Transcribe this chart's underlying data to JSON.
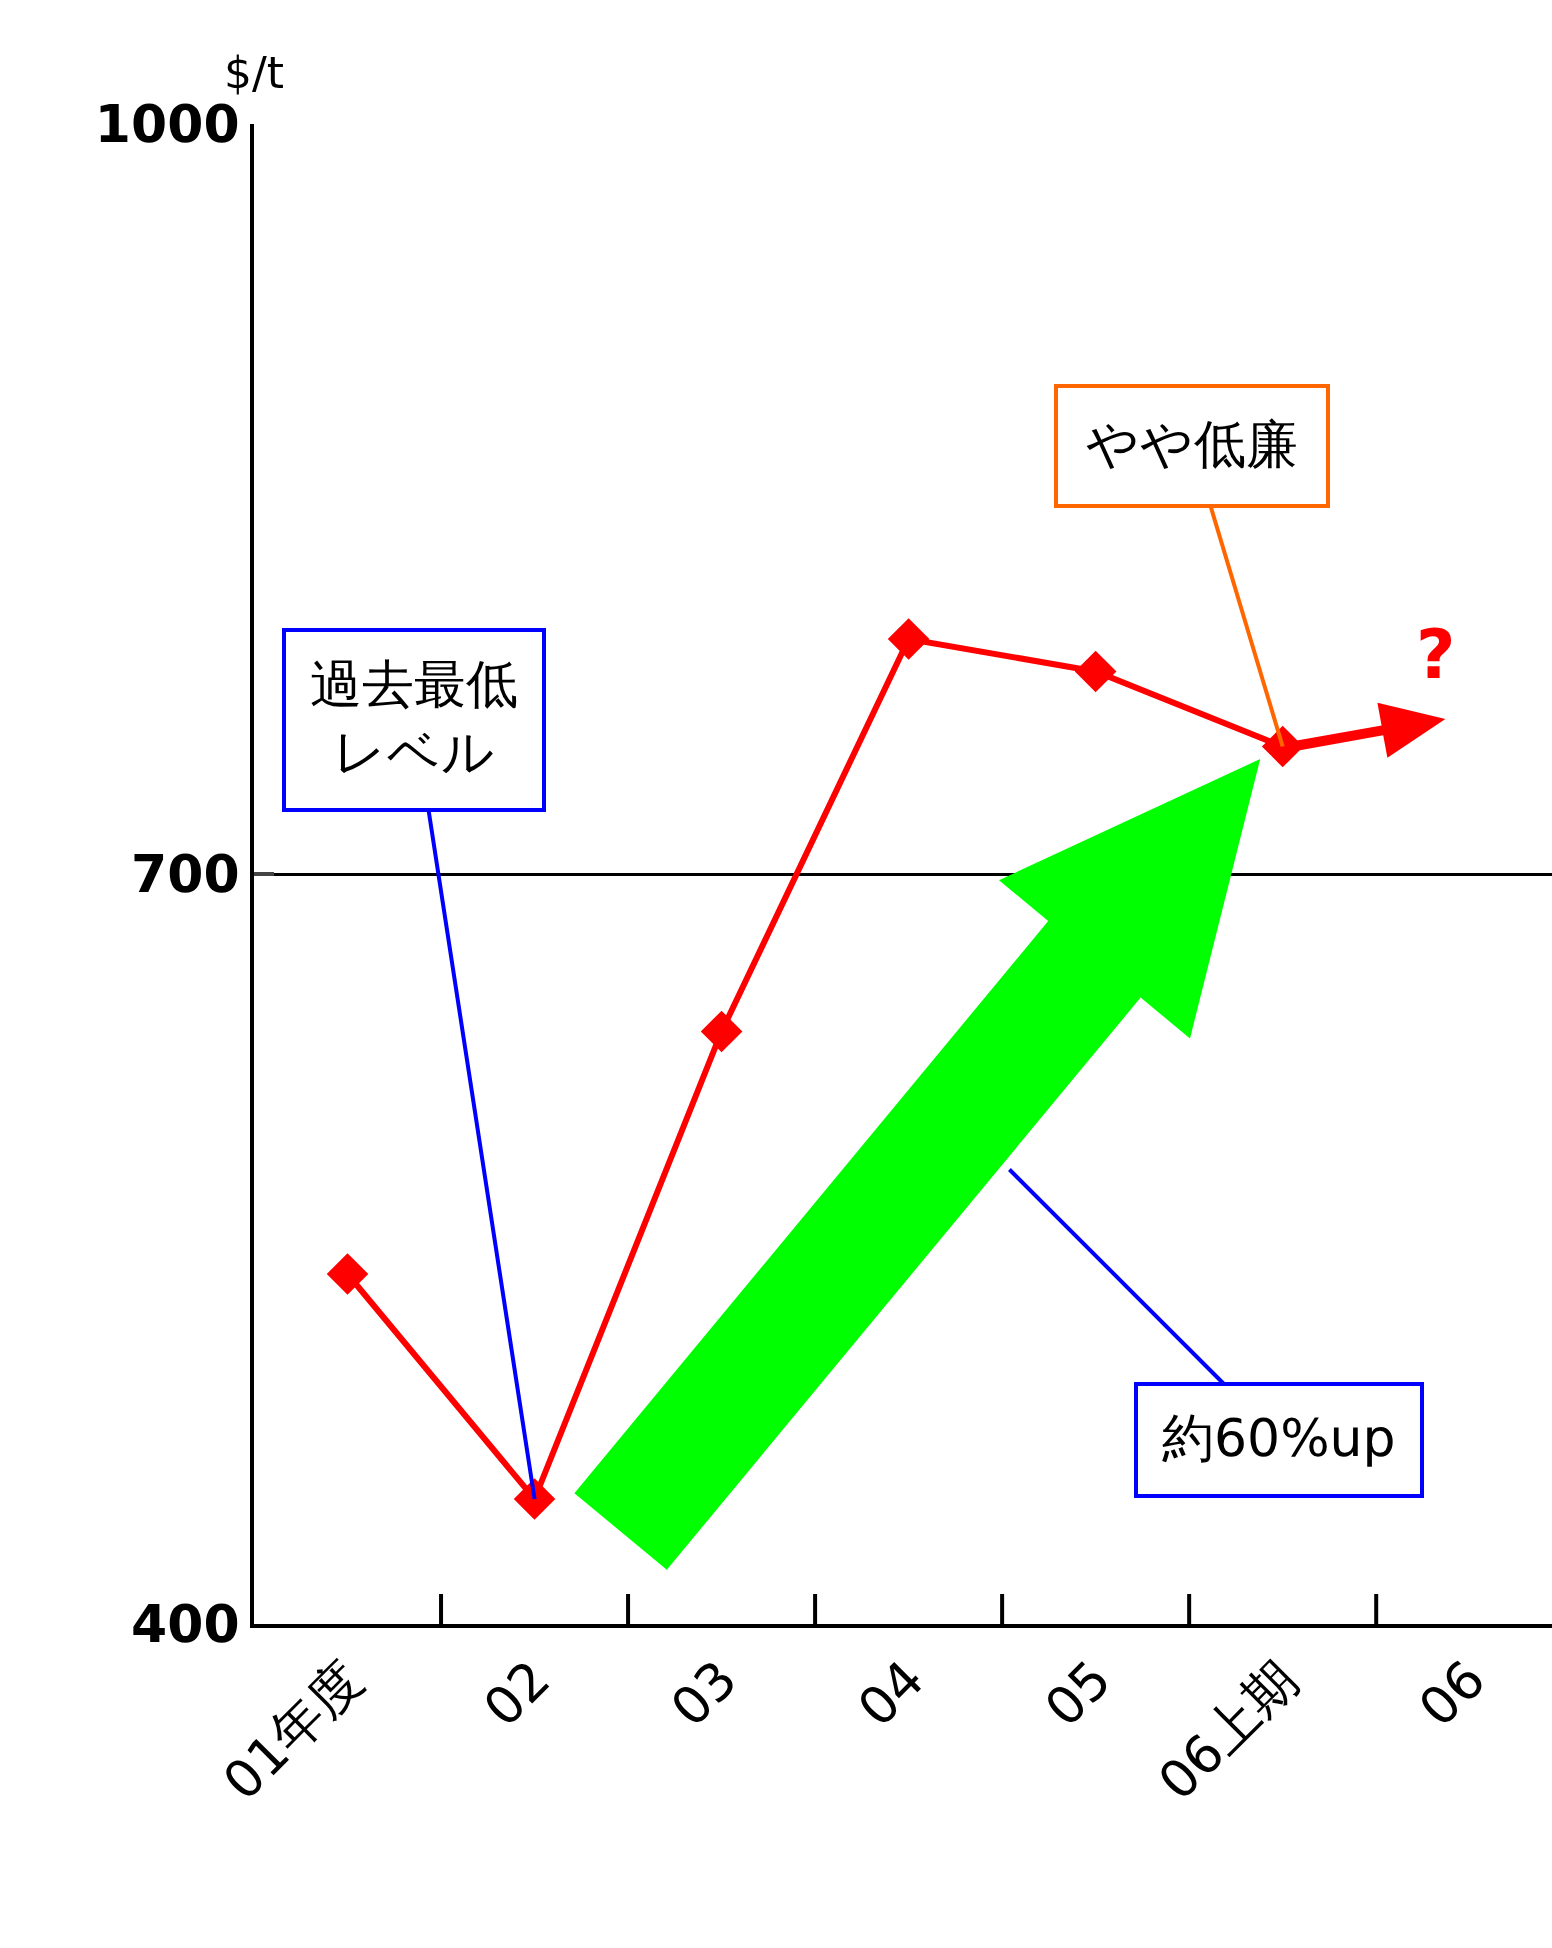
{
  "chart_data": {
    "type": "line",
    "ylabel": "$/t",
    "categories": [
      "01年度",
      "02",
      "03",
      "04",
      "05",
      "06上期",
      "06"
    ],
    "series": [
      {
        "color": "#ff0000",
        "values": [
          540,
          450,
          637,
          794,
          781,
          751,
          null
        ]
      }
    ],
    "ylim": [
      400,
      1000
    ],
    "yticks": [
      400,
      700,
      1000
    ],
    "grid": "y",
    "marker": "diamond",
    "line_style": "solid",
    "annotations": [
      "過去最低レベル",
      {
        "text": "やや低廉",
        "x": "06上期",
        "y": 751
      },
      "約60%up",
      "?"
    ]
  }
}
